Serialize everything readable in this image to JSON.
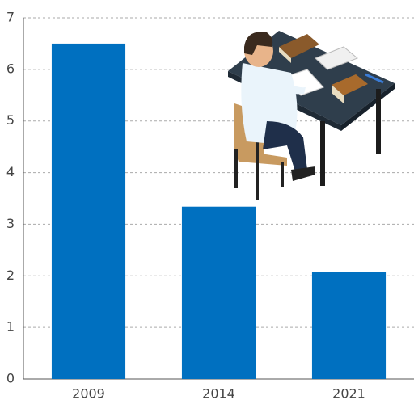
{
  "chart_data": {
    "type": "bar",
    "categories": [
      "2009",
      "2014",
      "2021"
    ],
    "values": [
      6.5,
      3.34,
      2.08
    ],
    "color": "#0070c0",
    "ylim": [
      0,
      7
    ],
    "yticks": [
      0,
      1,
      2,
      3,
      4,
      5,
      6,
      7
    ],
    "grid": true
  }
}
